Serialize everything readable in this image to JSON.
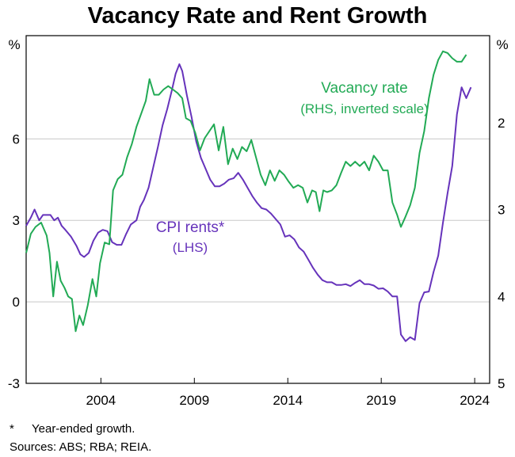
{
  "chart_data": {
    "type": "line",
    "title": "Vacancy Rate and Rent Growth",
    "left_axis": {
      "unit": "%",
      "ticks": [
        "6",
        "3",
        "0",
        "-3"
      ],
      "range": [
        -3,
        9.8
      ]
    },
    "right_axis": {
      "unit": "%",
      "inverted": true,
      "ticks": [
        "2",
        "3",
        "4",
        "5"
      ],
      "range": [
        1.0,
        5.0
      ]
    },
    "x_axis": {
      "range": [
        2000,
        2024.8
      ],
      "ticks": [
        "2004",
        "2009",
        "2014",
        "2019",
        "2024"
      ]
    },
    "grid": "horizontal",
    "series": [
      {
        "name": "CPI rents*",
        "sublabel": "(LHS)",
        "axis": "left",
        "color": "#6633bb",
        "points": [
          [
            2000.0,
            2.8
          ],
          [
            2000.25,
            3.1
          ],
          [
            2000.45,
            3.4
          ],
          [
            2000.7,
            3.0
          ],
          [
            2000.9,
            3.2
          ],
          [
            2001.1,
            3.2
          ],
          [
            2001.3,
            3.2
          ],
          [
            2001.5,
            3.0
          ],
          [
            2001.7,
            3.1
          ],
          [
            2001.9,
            2.8
          ],
          [
            2002.1,
            2.65
          ],
          [
            2002.4,
            2.4
          ],
          [
            2002.7,
            2.05
          ],
          [
            2002.9,
            1.75
          ],
          [
            2003.1,
            1.65
          ],
          [
            2003.35,
            1.8
          ],
          [
            2003.6,
            2.25
          ],
          [
            2003.85,
            2.55
          ],
          [
            2004.1,
            2.65
          ],
          [
            2004.35,
            2.6
          ],
          [
            2004.6,
            2.2
          ],
          [
            2004.85,
            2.1
          ],
          [
            2005.1,
            2.1
          ],
          [
            2005.35,
            2.5
          ],
          [
            2005.6,
            2.85
          ],
          [
            2005.9,
            3.0
          ],
          [
            2006.1,
            3.5
          ],
          [
            2006.3,
            3.75
          ],
          [
            2006.55,
            4.2
          ],
          [
            2006.8,
            4.95
          ],
          [
            2007.05,
            5.7
          ],
          [
            2007.3,
            6.5
          ],
          [
            2007.55,
            7.1
          ],
          [
            2007.8,
            7.8
          ],
          [
            2008.0,
            8.4
          ],
          [
            2008.2,
            8.75
          ],
          [
            2008.35,
            8.5
          ],
          [
            2008.6,
            7.6
          ],
          [
            2008.85,
            6.8
          ],
          [
            2009.1,
            5.9
          ],
          [
            2009.35,
            5.3
          ],
          [
            2009.6,
            4.9
          ],
          [
            2009.85,
            4.5
          ],
          [
            2010.1,
            4.25
          ],
          [
            2010.35,
            4.25
          ],
          [
            2010.6,
            4.35
          ],
          [
            2010.85,
            4.5
          ],
          [
            2011.1,
            4.55
          ],
          [
            2011.35,
            4.75
          ],
          [
            2011.6,
            4.5
          ],
          [
            2011.85,
            4.2
          ],
          [
            2012.1,
            3.9
          ],
          [
            2012.35,
            3.65
          ],
          [
            2012.6,
            3.45
          ],
          [
            2012.85,
            3.4
          ],
          [
            2013.1,
            3.25
          ],
          [
            2013.35,
            3.05
          ],
          [
            2013.6,
            2.85
          ],
          [
            2013.85,
            2.4
          ],
          [
            2014.1,
            2.45
          ],
          [
            2014.35,
            2.3
          ],
          [
            2014.6,
            2.0
          ],
          [
            2014.85,
            1.85
          ],
          [
            2015.1,
            1.55
          ],
          [
            2015.35,
            1.25
          ],
          [
            2015.6,
            1.0
          ],
          [
            2015.85,
            0.8
          ],
          [
            2016.1,
            0.72
          ],
          [
            2016.35,
            0.72
          ],
          [
            2016.6,
            0.62
          ],
          [
            2016.85,
            0.62
          ],
          [
            2017.1,
            0.65
          ],
          [
            2017.35,
            0.58
          ],
          [
            2017.6,
            0.7
          ],
          [
            2017.85,
            0.8
          ],
          [
            2018.1,
            0.65
          ],
          [
            2018.35,
            0.65
          ],
          [
            2018.6,
            0.6
          ],
          [
            2018.85,
            0.48
          ],
          [
            2019.1,
            0.5
          ],
          [
            2019.35,
            0.38
          ],
          [
            2019.6,
            0.2
          ],
          [
            2019.85,
            0.2
          ],
          [
            2020.05,
            -1.2
          ],
          [
            2020.3,
            -1.45
          ],
          [
            2020.55,
            -1.3
          ],
          [
            2020.8,
            -1.4
          ],
          [
            2021.05,
            -0.05
          ],
          [
            2021.3,
            0.35
          ],
          [
            2021.55,
            0.38
          ],
          [
            2021.8,
            1.1
          ],
          [
            2022.05,
            1.7
          ],
          [
            2022.3,
            2.9
          ],
          [
            2022.55,
            4.0
          ],
          [
            2022.8,
            5.0
          ],
          [
            2023.05,
            6.9
          ],
          [
            2023.3,
            7.9
          ],
          [
            2023.55,
            7.5
          ],
          [
            2023.8,
            7.9
          ]
        ]
      },
      {
        "name": "Vacancy rate",
        "sublabel": "(RHS, inverted scale)",
        "axis": "right",
        "color": "#22aa55",
        "points": [
          [
            2000.0,
            3.5
          ],
          [
            2000.25,
            3.28
          ],
          [
            2000.5,
            3.2
          ],
          [
            2000.8,
            3.15
          ],
          [
            2001.1,
            3.3
          ],
          [
            2001.25,
            3.5
          ],
          [
            2001.45,
            4.0
          ],
          [
            2001.65,
            3.6
          ],
          [
            2001.85,
            3.82
          ],
          [
            2002.05,
            3.9
          ],
          [
            2002.25,
            4.0
          ],
          [
            2002.45,
            4.03
          ],
          [
            2002.65,
            4.4
          ],
          [
            2002.85,
            4.22
          ],
          [
            2003.05,
            4.33
          ],
          [
            2003.3,
            4.1
          ],
          [
            2003.55,
            3.8
          ],
          [
            2003.75,
            4.0
          ],
          [
            2003.95,
            3.62
          ],
          [
            2004.2,
            3.38
          ],
          [
            2004.45,
            3.4
          ],
          [
            2004.65,
            2.78
          ],
          [
            2004.9,
            2.65
          ],
          [
            2005.15,
            2.6
          ],
          [
            2005.4,
            2.4
          ],
          [
            2005.65,
            2.25
          ],
          [
            2005.9,
            2.05
          ],
          [
            2006.15,
            1.9
          ],
          [
            2006.4,
            1.75
          ],
          [
            2006.6,
            1.5
          ],
          [
            2006.85,
            1.68
          ],
          [
            2007.1,
            1.68
          ],
          [
            2007.35,
            1.62
          ],
          [
            2007.6,
            1.58
          ],
          [
            2007.85,
            1.62
          ],
          [
            2008.1,
            1.66
          ],
          [
            2008.35,
            1.72
          ],
          [
            2008.55,
            1.95
          ],
          [
            2008.8,
            1.98
          ],
          [
            2009.05,
            2.12
          ],
          [
            2009.3,
            2.32
          ],
          [
            2009.55,
            2.18
          ],
          [
            2009.8,
            2.1
          ],
          [
            2010.05,
            2.02
          ],
          [
            2010.3,
            2.32
          ],
          [
            2010.55,
            2.05
          ],
          [
            2010.8,
            2.48
          ],
          [
            2011.05,
            2.3
          ],
          [
            2011.3,
            2.42
          ],
          [
            2011.55,
            2.28
          ],
          [
            2011.8,
            2.33
          ],
          [
            2012.05,
            2.2
          ],
          [
            2012.3,
            2.4
          ],
          [
            2012.55,
            2.6
          ],
          [
            2012.8,
            2.72
          ],
          [
            2013.05,
            2.55
          ],
          [
            2013.3,
            2.67
          ],
          [
            2013.55,
            2.55
          ],
          [
            2013.8,
            2.6
          ],
          [
            2014.05,
            2.68
          ],
          [
            2014.3,
            2.75
          ],
          [
            2014.55,
            2.72
          ],
          [
            2014.8,
            2.75
          ],
          [
            2015.05,
            2.92
          ],
          [
            2015.3,
            2.78
          ],
          [
            2015.5,
            2.8
          ],
          [
            2015.7,
            3.02
          ],
          [
            2015.9,
            2.78
          ],
          [
            2016.1,
            2.8
          ],
          [
            2016.35,
            2.78
          ],
          [
            2016.6,
            2.72
          ],
          [
            2016.85,
            2.58
          ],
          [
            2017.1,
            2.45
          ],
          [
            2017.35,
            2.5
          ],
          [
            2017.6,
            2.45
          ],
          [
            2017.85,
            2.5
          ],
          [
            2018.1,
            2.45
          ],
          [
            2018.35,
            2.55
          ],
          [
            2018.6,
            2.38
          ],
          [
            2018.85,
            2.45
          ],
          [
            2019.1,
            2.55
          ],
          [
            2019.35,
            2.55
          ],
          [
            2019.6,
            2.92
          ],
          [
            2019.85,
            3.06
          ],
          [
            2020.05,
            3.2
          ],
          [
            2020.3,
            3.08
          ],
          [
            2020.55,
            2.95
          ],
          [
            2020.8,
            2.75
          ],
          [
            2021.05,
            2.35
          ],
          [
            2021.3,
            2.1
          ],
          [
            2021.55,
            1.72
          ],
          [
            2021.8,
            1.45
          ],
          [
            2022.05,
            1.28
          ],
          [
            2022.3,
            1.18
          ],
          [
            2022.55,
            1.2
          ],
          [
            2022.8,
            1.26
          ],
          [
            2023.05,
            1.3
          ],
          [
            2023.3,
            1.3
          ],
          [
            2023.55,
            1.22
          ]
        ]
      }
    ]
  },
  "footnotes": {
    "marker": "*",
    "note": "Year-ended growth.",
    "sources": "Sources: ABS; RBA; REIA."
  }
}
